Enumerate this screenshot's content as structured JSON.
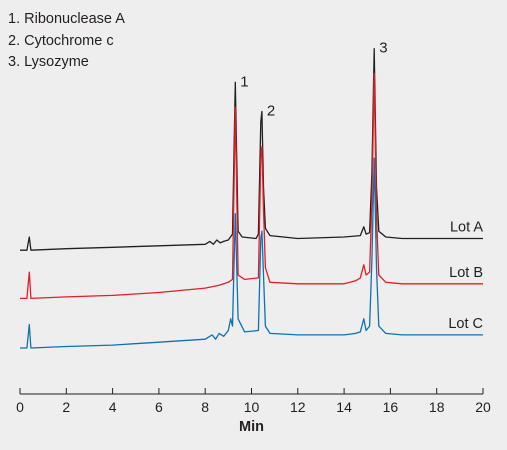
{
  "legend": {
    "items": [
      "1. Ribonuclease A",
      "2. Cytochrome c",
      "3. Lysozyme"
    ]
  },
  "chart_data": {
    "type": "line",
    "title": "",
    "xlabel": "Min",
    "ylabel": "",
    "xlim": [
      0,
      20
    ],
    "xticks": [
      0,
      2,
      4,
      6,
      8,
      10,
      12,
      14,
      16,
      18,
      20
    ],
    "grid": false,
    "y_axis": "not shown",
    "peaks": [
      {
        "label": "1",
        "name": "Ribonuclease A",
        "x": 9.3
      },
      {
        "label": "2",
        "name": "Cytochrome c",
        "x": 10.45
      },
      {
        "label": "3",
        "name": "Lysozyme",
        "x": 15.3
      }
    ],
    "series": [
      {
        "name": "Lot A",
        "color": "#231f20",
        "baseline": 0.67,
        "points": [
          [
            0,
            0.67
          ],
          [
            0.3,
            0.67
          ],
          [
            0.4,
            0.76
          ],
          [
            0.47,
            0.67
          ],
          [
            2,
            0.68
          ],
          [
            4,
            0.69
          ],
          [
            6,
            0.7
          ],
          [
            8,
            0.71
          ],
          [
            8.2,
            0.73
          ],
          [
            8.35,
            0.71
          ],
          [
            8.5,
            0.74
          ],
          [
            8.65,
            0.72
          ],
          [
            8.8,
            0.73
          ],
          [
            9.0,
            0.74
          ],
          [
            9.18,
            0.78
          ],
          [
            9.3,
            1.82
          ],
          [
            9.42,
            0.8
          ],
          [
            9.6,
            0.76
          ],
          [
            10.2,
            0.75
          ],
          [
            10.3,
            0.78
          ],
          [
            10.4,
            1.55
          ],
          [
            10.45,
            1.62
          ],
          [
            10.52,
            1.1
          ],
          [
            10.6,
            0.82
          ],
          [
            10.8,
            0.77
          ],
          [
            12,
            0.75
          ],
          [
            14,
            0.76
          ],
          [
            14.7,
            0.77
          ],
          [
            14.85,
            0.83
          ],
          [
            14.95,
            0.78
          ],
          [
            15.1,
            0.79
          ],
          [
            15.2,
            1.2
          ],
          [
            15.3,
            2.05
          ],
          [
            15.4,
            1.1
          ],
          [
            15.5,
            0.8
          ],
          [
            15.8,
            0.76
          ],
          [
            16.5,
            0.75
          ],
          [
            20,
            0.75
          ]
        ]
      },
      {
        "name": "Lot B",
        "color": "#e11f26",
        "baseline": 0.34,
        "points": [
          [
            0,
            0.34
          ],
          [
            0.3,
            0.34
          ],
          [
            0.4,
            0.52
          ],
          [
            0.47,
            0.34
          ],
          [
            2,
            0.35
          ],
          [
            4,
            0.36
          ],
          [
            6,
            0.38
          ],
          [
            8,
            0.41
          ],
          [
            8.6,
            0.43
          ],
          [
            9.0,
            0.45
          ],
          [
            9.18,
            0.47
          ],
          [
            9.3,
            1.65
          ],
          [
            9.42,
            0.5
          ],
          [
            9.7,
            0.47
          ],
          [
            10.3,
            0.48
          ],
          [
            10.4,
            1.3
          ],
          [
            10.45,
            1.38
          ],
          [
            10.52,
            0.95
          ],
          [
            10.6,
            0.55
          ],
          [
            10.8,
            0.45
          ],
          [
            12,
            0.44
          ],
          [
            14,
            0.44
          ],
          [
            14.5,
            0.46
          ],
          [
            14.7,
            0.48
          ],
          [
            14.85,
            0.57
          ],
          [
            14.95,
            0.5
          ],
          [
            15.1,
            0.52
          ],
          [
            15.2,
            1.0
          ],
          [
            15.3,
            1.88
          ],
          [
            15.4,
            0.9
          ],
          [
            15.5,
            0.5
          ],
          [
            15.8,
            0.45
          ],
          [
            16.5,
            0.44
          ],
          [
            20,
            0.44
          ]
        ]
      },
      {
        "name": "Lot C",
        "color": "#0e72b0",
        "baseline": 0.0,
        "points": [
          [
            0,
            0.0
          ],
          [
            0.3,
            0.0
          ],
          [
            0.4,
            0.16
          ],
          [
            0.47,
            0.0
          ],
          [
            2,
            0.01
          ],
          [
            4,
            0.02
          ],
          [
            6,
            0.04
          ],
          [
            8,
            0.06
          ],
          [
            8.3,
            0.09
          ],
          [
            8.45,
            0.06
          ],
          [
            8.6,
            0.1
          ],
          [
            8.8,
            0.08
          ],
          [
            9.0,
            0.12
          ],
          [
            9.1,
            0.2
          ],
          [
            9.18,
            0.15
          ],
          [
            9.3,
            0.92
          ],
          [
            9.42,
            0.2
          ],
          [
            9.7,
            0.11
          ],
          [
            10.3,
            0.12
          ],
          [
            10.4,
            0.75
          ],
          [
            10.45,
            0.8
          ],
          [
            10.52,
            0.5
          ],
          [
            10.6,
            0.15
          ],
          [
            10.8,
            0.1
          ],
          [
            12,
            0.09
          ],
          [
            14,
            0.09
          ],
          [
            14.5,
            0.1
          ],
          [
            14.7,
            0.11
          ],
          [
            14.85,
            0.2
          ],
          [
            14.95,
            0.12
          ],
          [
            15.1,
            0.15
          ],
          [
            15.2,
            0.6
          ],
          [
            15.3,
            1.3
          ],
          [
            15.4,
            0.55
          ],
          [
            15.5,
            0.15
          ],
          [
            15.8,
            0.1
          ],
          [
            16.5,
            0.09
          ],
          [
            20,
            0.09
          ]
        ]
      }
    ]
  }
}
